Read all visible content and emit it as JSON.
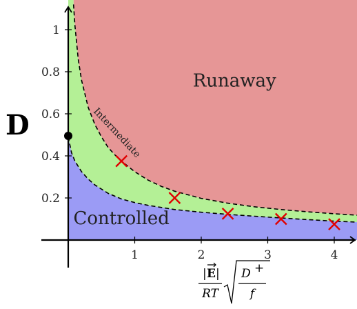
{
  "chart_data": {
    "type": "area",
    "title": "",
    "ylabel": "D",
    "xlabel": {
      "numerator_abs_open": "|",
      "numerator_vec": "E",
      "numerator_abs_close": "|",
      "denominator": "RT",
      "sqrt_numerator": "D",
      "sqrt_numerator_sup": "+",
      "sqrt_denominator": "f"
    },
    "xlim": [
      -0.4,
      4.35
    ],
    "ylim": [
      -0.2,
      1.12
    ],
    "x_ticks": [
      1,
      2,
      3,
      4
    ],
    "y_ticks": [
      0.2,
      0.4,
      0.6,
      0.8,
      1
    ],
    "x_tick_labels": [
      "1",
      "2",
      "3",
      "4"
    ],
    "y_tick_labels": [
      "0.2",
      "0.4",
      "0.6",
      "0.8",
      "1"
    ],
    "regions": [
      {
        "name": "Runaway",
        "color": "#e69696",
        "label_x": 2.5,
        "label_y": 0.73
      },
      {
        "name": "Intermediate",
        "color": "#b4f096",
        "label_x": 0.7,
        "label_y": 0.5,
        "label_angle": 47
      },
      {
        "name": "Controlled",
        "color": "#9b9bf5",
        "label_x": 0.8,
        "label_y": 0.075
      }
    ],
    "boundary_upper": {
      "style": "dashed",
      "x": [
        0.08,
        0.1,
        0.15,
        0.2,
        0.3,
        0.4,
        0.5,
        0.6,
        0.7,
        0.8,
        1.0,
        1.2,
        1.4,
        1.6,
        2.0,
        2.4,
        2.8,
        3.2,
        3.6,
        4.0,
        4.35
      ],
      "y": [
        1.12,
        1.02,
        0.86,
        0.76,
        0.63,
        0.55,
        0.49,
        0.44,
        0.405,
        0.375,
        0.325,
        0.285,
        0.255,
        0.232,
        0.198,
        0.175,
        0.158,
        0.145,
        0.134,
        0.125,
        0.118
      ]
    },
    "boundary_lower": {
      "style": "dashed",
      "x": [
        0.0,
        0.05,
        0.1,
        0.2,
        0.3,
        0.4,
        0.6,
        0.8,
        1.0,
        1.2,
        1.6,
        2.0,
        2.4,
        2.8,
        3.2,
        3.6,
        4.0,
        4.35
      ],
      "y": [
        0.49,
        0.415,
        0.375,
        0.325,
        0.29,
        0.262,
        0.222,
        0.195,
        0.178,
        0.165,
        0.145,
        0.132,
        0.122,
        0.113,
        0.105,
        0.097,
        0.09,
        0.085
      ]
    },
    "point": {
      "x": 0.0,
      "y": 0.495,
      "color": "#000000"
    },
    "markers": {
      "shape": "x",
      "color": "#e00000",
      "points": [
        {
          "x": 0.8,
          "y": 0.375
        },
        {
          "x": 1.6,
          "y": 0.2
        },
        {
          "x": 2.4,
          "y": 0.125
        },
        {
          "x": 3.2,
          "y": 0.1
        },
        {
          "x": 4.0,
          "y": 0.075
        }
      ]
    },
    "grid": false,
    "legend": "none"
  }
}
